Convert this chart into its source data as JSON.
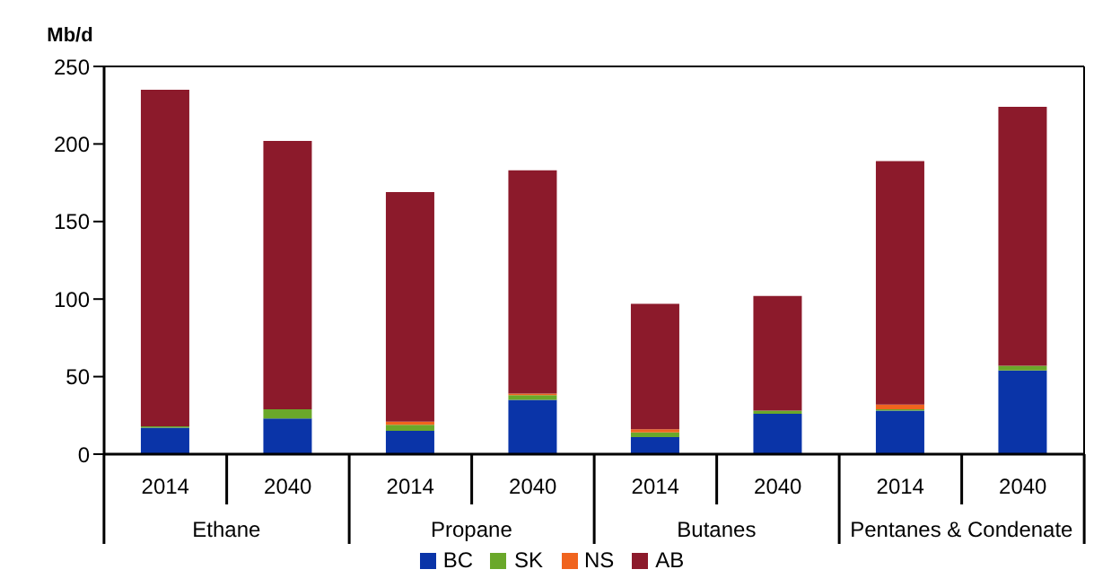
{
  "chart_data": {
    "type": "bar",
    "stacked": true,
    "ylabel": "Mb/d",
    "categories": [
      "2014",
      "2040",
      "2014",
      "2040",
      "2014",
      "2040",
      "2014",
      "2040"
    ],
    "annotations": [
      "Ethane",
      "Propane",
      "Butanes",
      "Pentanes & Condenate"
    ],
    "series": [
      {
        "name": "BC",
        "color": "#0a34a8",
        "values": [
          17,
          23,
          15,
          35,
          11,
          26,
          28,
          54
        ]
      },
      {
        "name": "SK",
        "color": "#6aa82a",
        "values": [
          1,
          6,
          4,
          3,
          3,
          2,
          1,
          3
        ]
      },
      {
        "name": "NS",
        "color": "#f0641e",
        "values": [
          0,
          0,
          2,
          1,
          2,
          0,
          3,
          0
        ]
      },
      {
        "name": "AB",
        "color": "#8c1a2b",
        "values": [
          217,
          173,
          148,
          144,
          81,
          74,
          157,
          167
        ]
      }
    ],
    "ylim": [
      0,
      250
    ],
    "yticks": [
      0,
      50,
      100,
      150,
      200,
      250
    ],
    "legend": "bottom"
  }
}
